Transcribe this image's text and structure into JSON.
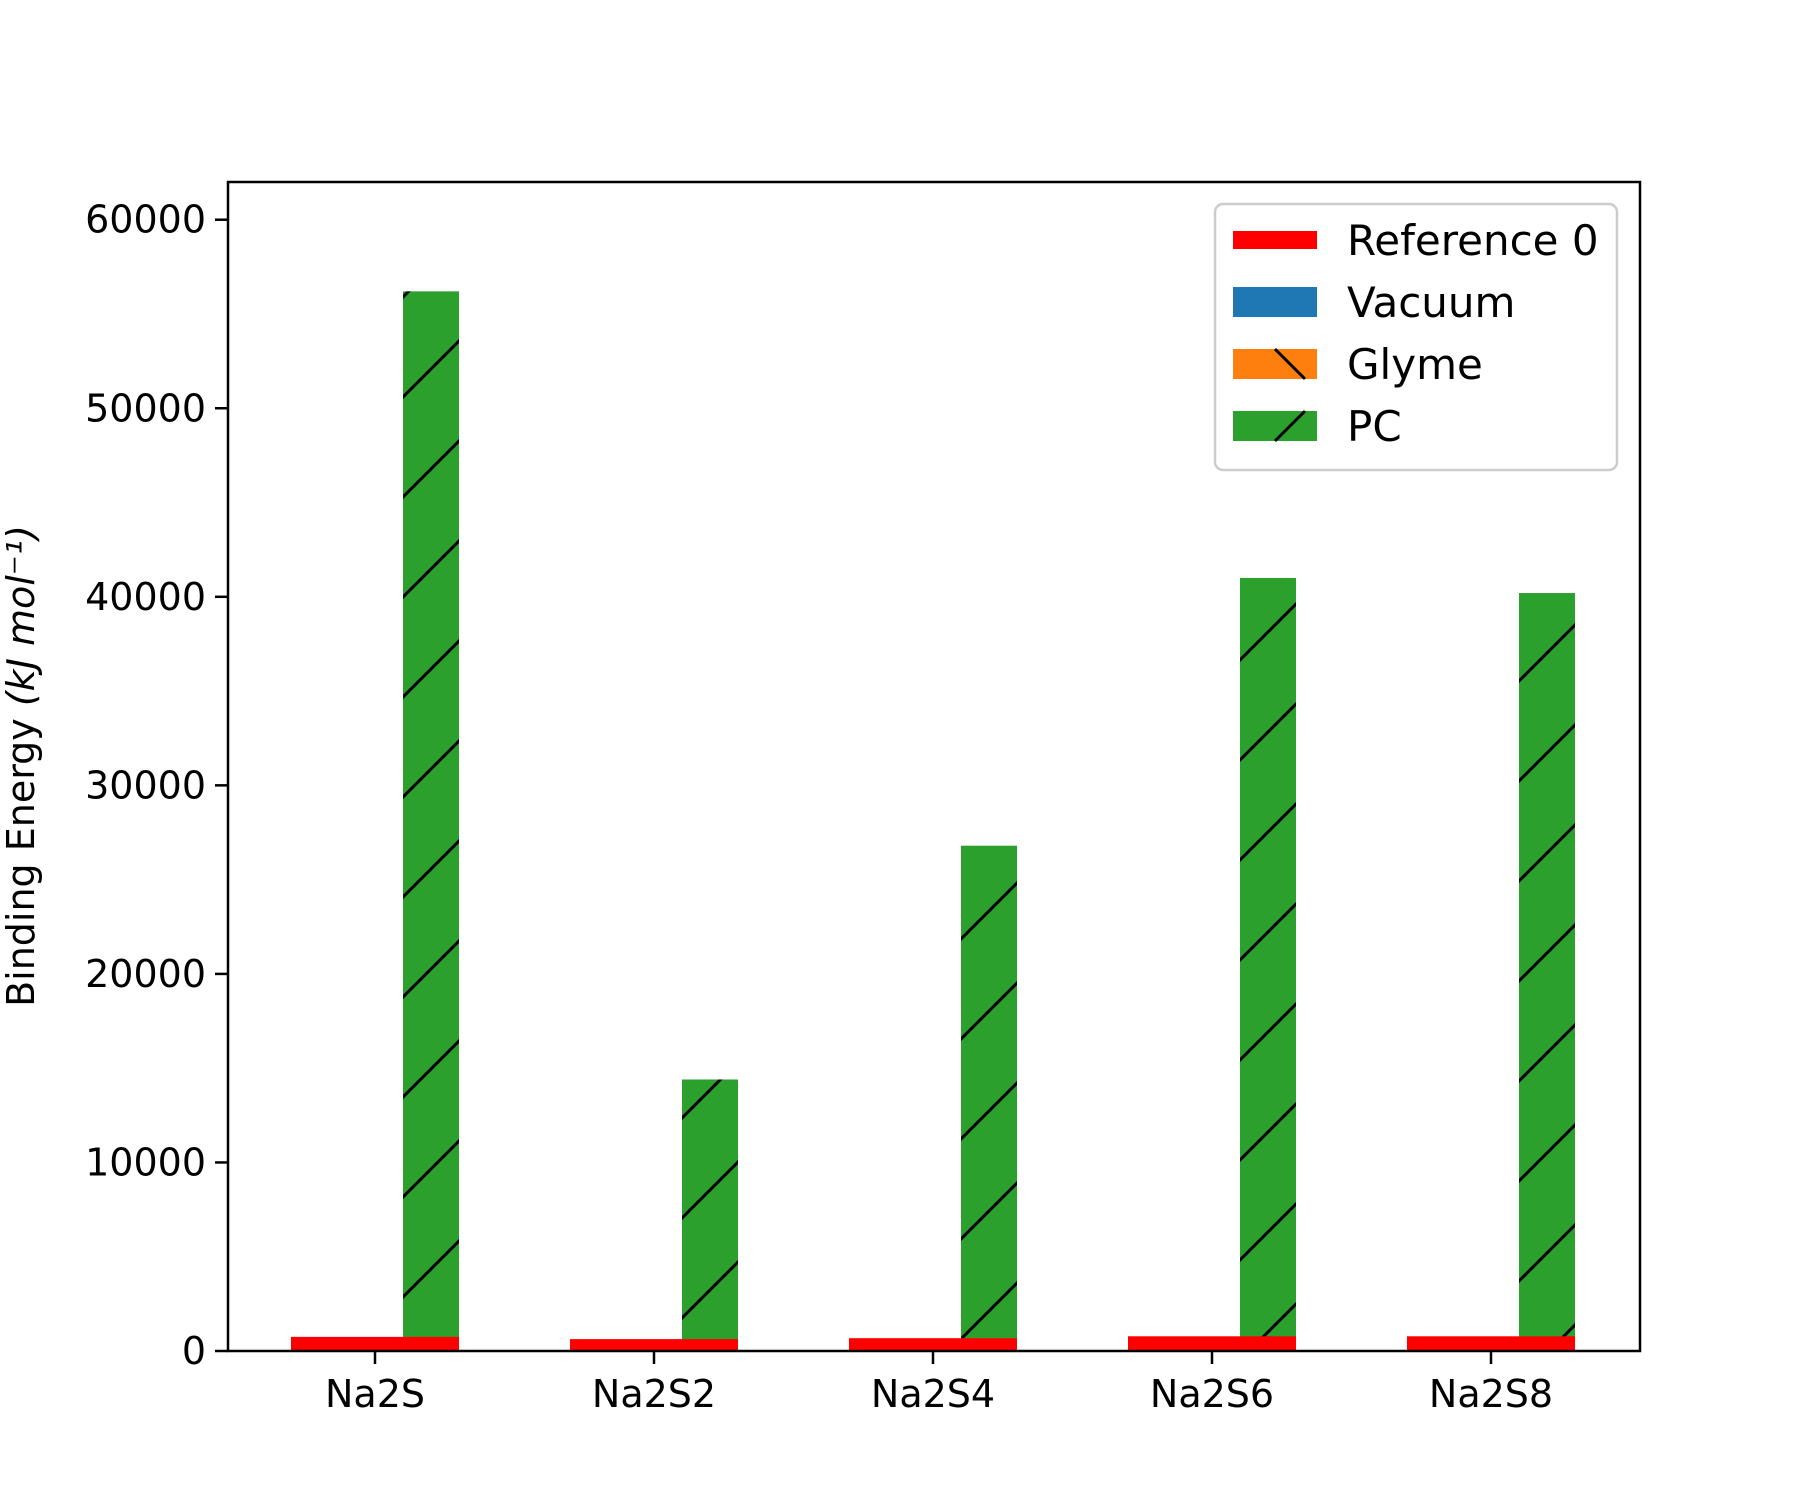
{
  "chart_data": {
    "type": "bar",
    "title": "",
    "xlabel": "",
    "ylabel": "Binding Energy (kJ mol⁻¹)",
    "ylabel_parts": {
      "main": "Binding Energy ",
      "unit": "(kJ mol⁻¹)"
    },
    "ylim": [
      0,
      62000
    ],
    "yticks": [
      0,
      10000,
      20000,
      30000,
      40000,
      50000,
      60000
    ],
    "ytick_labels": [
      "0",
      "10000",
      "20000",
      "30000",
      "40000",
      "50000",
      "60000"
    ],
    "categories": [
      "Na2S",
      "Na2S2",
      "Na2S4",
      "Na2S6",
      "Na2S8"
    ],
    "grid": false,
    "legend_position": "top-right",
    "series": [
      {
        "name": "Reference 0",
        "type": "line",
        "color": "#ff0000",
        "values": [
          750,
          630,
          680,
          780,
          780
        ]
      },
      {
        "name": "Vacuum",
        "type": "bar",
        "color": "#1f77b4",
        "hatch": "",
        "values": [
          0,
          0,
          0,
          0,
          0
        ]
      },
      {
        "name": "Glyme",
        "type": "bar",
        "color": "#ff7f0e",
        "hatch": "backslash",
        "values": [
          0,
          0,
          0,
          0,
          0
        ]
      },
      {
        "name": "PC",
        "type": "bar",
        "color": "#2ca02c",
        "hatch": "slash",
        "values": [
          56200,
          14400,
          26800,
          41000,
          40200
        ]
      }
    ]
  }
}
